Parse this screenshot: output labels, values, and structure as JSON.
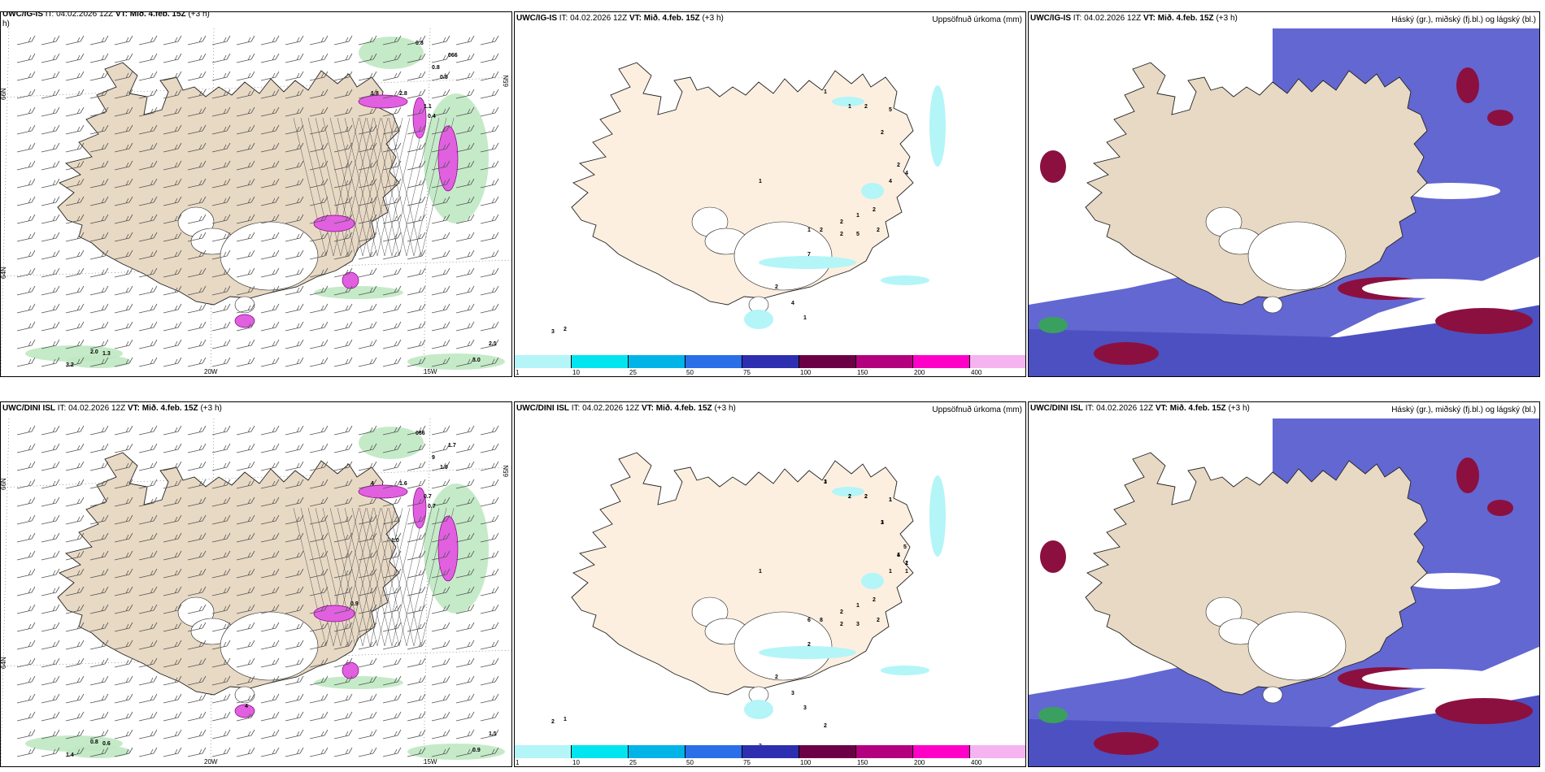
{
  "panels": [
    {
      "id": "p1",
      "model": "UWC/IG-IS",
      "it": "IT: 04.02.2026 12Z",
      "vt": "VT: Mið. 4.feb. 15Z",
      "lead": "(+3 h)",
      "lead_overflow": "h)",
      "kind": "wind",
      "labels": [
        "0.8",
        "066",
        "0.8",
        "0.5",
        "1.8",
        "2.8",
        "1.1",
        "0.4",
        "2.0",
        "1.3",
        "3.2",
        "3.0",
        "2.1"
      ],
      "axis": {
        "lon": [
          "20W",
          "15W"
        ],
        "lat": [
          "66N",
          "64N",
          "65N"
        ]
      }
    },
    {
      "id": "p2",
      "model": "UWC/IG-IS",
      "it": "IT: 04.02.2026 12Z",
      "vt": "VT: Mið. 4.feb. 15Z",
      "lead": "(+3 h)",
      "right_title": "Uppsöfnuð úrkoma (mm)",
      "kind": "precip",
      "labels": [
        "1",
        "1",
        "2",
        "5",
        "2",
        "2",
        "4",
        "4",
        "2",
        "1",
        "2",
        "1",
        "1",
        "2",
        "2",
        "2",
        "5",
        "7",
        "4",
        "1",
        "2",
        "3",
        "2"
      ],
      "colorbar": {
        "ticks": [
          "1",
          "10",
          "25",
          "50",
          "75",
          "100",
          "150",
          "200",
          "400"
        ],
        "colors": [
          "#b4f5f8",
          "#00e5ef",
          "#00b4e8",
          "#2a6ee8",
          "#2d2fb0",
          "#6b0047",
          "#b3007e",
          "#ff00c8",
          "#f5b3f0"
        ]
      }
    },
    {
      "id": "p3",
      "model": "UWC/IG-IS",
      "it": "IT: 04.02.2026 12Z",
      "vt": "VT: Mið. 4.feb. 15Z",
      "lead": "(+3 h)",
      "right_title": "Háský (gr.), miðský (fj.bl.) og lágský (bl.)",
      "kind": "cloud"
    },
    {
      "id": "p4",
      "model": "UWC/DINI ISL",
      "it": "IT: 04.02.2026 12Z",
      "vt": "VT: Mið. 4.feb. 15Z",
      "lead": "(+3 h)",
      "kind": "wind",
      "labels": [
        "066",
        "1.7",
        "9",
        "1.9",
        "4",
        "1.6",
        "0.7",
        "0.7",
        "0.8",
        "0.6",
        "1.4",
        "0.9",
        "1.1",
        "1.0",
        "0.9",
        "4"
      ],
      "axis": {
        "lon": [
          "20W",
          "15W"
        ],
        "lat": [
          "66N",
          "64N",
          "65N"
        ]
      }
    },
    {
      "id": "p5",
      "model": "UWC/DINI ISL",
      "it": "IT: 04.02.2026 12Z",
      "vt": "VT: Mið. 4.feb. 15Z",
      "lead": "(+3 h)",
      "right_title": "Uppsöfnuð úrkoma (mm)",
      "kind": "precip",
      "labels": [
        "1",
        "2",
        "2",
        "1",
        "3",
        "4",
        "1",
        "1",
        "2",
        "1",
        "2",
        "1",
        "6",
        "8",
        "2",
        "2",
        "3",
        "2",
        "3",
        "3",
        "2",
        "2",
        "1",
        "3",
        "3",
        "2",
        "1",
        "5",
        "3",
        "2",
        "2",
        "1",
        "1",
        "1",
        "2"
      ],
      "colorbar": {
        "ticks": [
          "1",
          "10",
          "25",
          "50",
          "75",
          "100",
          "150",
          "200",
          "400"
        ],
        "colors": [
          "#b4f5f8",
          "#00e5ef",
          "#00b4e8",
          "#2a6ee8",
          "#2d2fb0",
          "#6b0047",
          "#b3007e",
          "#ff00c8",
          "#f5b3f0"
        ]
      }
    },
    {
      "id": "p6",
      "model": "UWC/DINI ISL",
      "it": "IT: 04.02.2026 12Z",
      "vt": "VT: Mið. 4.feb. 15Z",
      "lead": "(+3 h)",
      "right_title": "Háský (gr.), miðský (fj.bl.) og lágský (bl.)",
      "kind": "cloud"
    }
  ]
}
